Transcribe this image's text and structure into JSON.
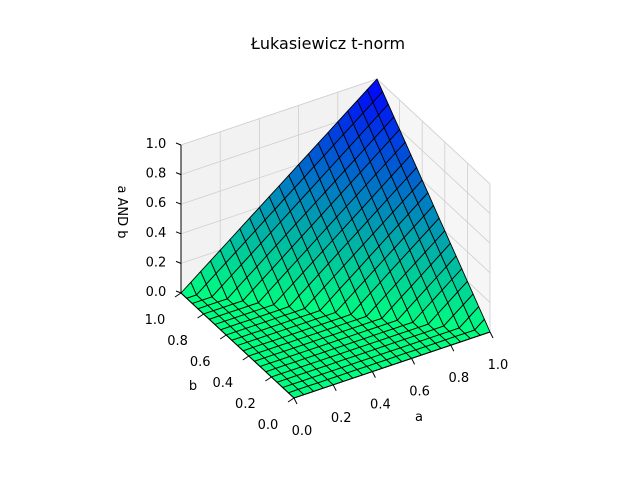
{
  "chart_data": {
    "type": "surface",
    "title": "Łukasiewicz t-norm",
    "xlabel": "a",
    "ylabel": "b",
    "zlabel": "a AND b",
    "xlim": [
      0,
      1
    ],
    "ylim": [
      0,
      1
    ],
    "zlim": [
      0,
      1
    ],
    "xticks": [
      "0.0",
      "0.2",
      "0.4",
      "0.6",
      "0.8",
      "1.0"
    ],
    "yticks": [
      "0.0",
      "0.2",
      "0.4",
      "0.6",
      "0.8",
      "1.0"
    ],
    "zticks": [
      "0.0",
      "0.2",
      "0.4",
      "0.6",
      "0.8",
      "1.0"
    ],
    "function": "max(0, a + b - 1)",
    "grid_resolution": 20,
    "colormap": "winter",
    "colors": {
      "low": "#00ff80",
      "high": "#0000ff",
      "edge": "#000000",
      "pane": "#f2f2f2",
      "grid": "#cfcfcf"
    },
    "grid": true
  }
}
